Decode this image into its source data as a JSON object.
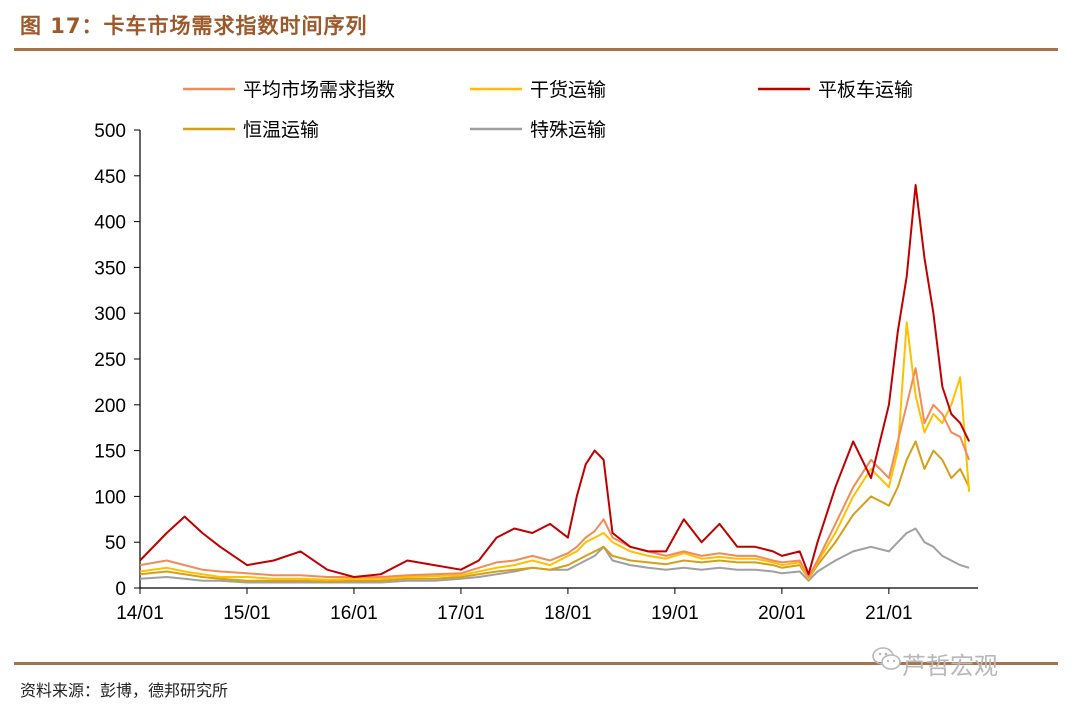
{
  "figure": {
    "title": "图 17：卡车市场需求指数时间序列",
    "source": "资料来源：彭博，德邦研究所",
    "watermark": "芦哲宏观"
  },
  "chart_data": {
    "type": "line",
    "x": [
      "2014-01",
      "2014-04",
      "2014-06",
      "2014-08",
      "2014-10",
      "2015-01",
      "2015-04",
      "2015-07",
      "2015-10",
      "2016-01",
      "2016-04",
      "2016-07",
      "2016-10",
      "2017-01",
      "2017-03",
      "2017-05",
      "2017-07",
      "2017-09",
      "2017-11",
      "2018-01",
      "2018-02",
      "2018-03",
      "2018-04",
      "2018-05",
      "2018-06",
      "2018-08",
      "2018-10",
      "2018-12",
      "2019-02",
      "2019-04",
      "2019-06",
      "2019-08",
      "2019-10",
      "2019-12",
      "2020-01",
      "2020-03",
      "2020-04",
      "2020-05",
      "2020-07",
      "2020-09",
      "2020-11",
      "2021-01",
      "2021-02",
      "2021-03",
      "2021-04",
      "2021-05",
      "2021-06",
      "2021-07",
      "2021-08",
      "2021-09",
      "2021-10"
    ],
    "series": [
      {
        "name": "平均市场需求指数",
        "color": "#f08c5a",
        "values": [
          25,
          30,
          25,
          20,
          18,
          16,
          14,
          14,
          12,
          12,
          12,
          14,
          15,
          16,
          22,
          28,
          30,
          35,
          30,
          38,
          45,
          55,
          62,
          75,
          55,
          45,
          40,
          35,
          40,
          35,
          38,
          35,
          35,
          30,
          28,
          30,
          12,
          30,
          70,
          110,
          140,
          120,
          160,
          200,
          240,
          180,
          200,
          190,
          170,
          165,
          140
        ]
      },
      {
        "name": "干货运输",
        "color": "#ffc000",
        "values": [
          18,
          22,
          18,
          15,
          12,
          12,
          10,
          10,
          9,
          10,
          10,
          12,
          13,
          14,
          18,
          22,
          25,
          30,
          25,
          35,
          40,
          50,
          55,
          60,
          50,
          40,
          35,
          32,
          38,
          32,
          34,
          32,
          32,
          28,
          25,
          28,
          10,
          28,
          60,
          100,
          130,
          110,
          150,
          290,
          210,
          170,
          190,
          180,
          200,
          230,
          105
        ]
      },
      {
        "name": "平板车运输",
        "color": "#c00000",
        "values": [
          30,
          60,
          78,
          60,
          45,
          25,
          30,
          40,
          20,
          12,
          15,
          30,
          25,
          20,
          30,
          55,
          65,
          60,
          70,
          55,
          100,
          135,
          150,
          140,
          60,
          45,
          40,
          40,
          75,
          50,
          70,
          45,
          45,
          40,
          35,
          40,
          15,
          50,
          110,
          160,
          120,
          200,
          280,
          340,
          440,
          360,
          300,
          220,
          190,
          180,
          160
        ]
      },
      {
        "name": "恒温运输",
        "color": "#d4a017",
        "values": [
          15,
          18,
          15,
          12,
          10,
          8,
          8,
          8,
          7,
          8,
          8,
          10,
          10,
          12,
          15,
          18,
          20,
          22,
          20,
          25,
          30,
          35,
          40,
          45,
          35,
          30,
          28,
          26,
          30,
          28,
          30,
          28,
          28,
          25,
          22,
          25,
          10,
          25,
          50,
          80,
          100,
          90,
          110,
          140,
          160,
          130,
          150,
          140,
          120,
          130,
          110
        ]
      },
      {
        "name": "特殊运输",
        "color": "#a0a0a0",
        "values": [
          10,
          12,
          10,
          8,
          8,
          6,
          6,
          6,
          6,
          6,
          6,
          8,
          8,
          10,
          12,
          15,
          18,
          22,
          20,
          20,
          25,
          30,
          35,
          45,
          30,
          25,
          22,
          20,
          22,
          20,
          22,
          20,
          20,
          18,
          16,
          18,
          8,
          18,
          30,
          40,
          45,
          40,
          50,
          60,
          65,
          50,
          45,
          35,
          30,
          25,
          22
        ]
      }
    ],
    "xticks": [
      "14/01",
      "15/01",
      "16/01",
      "17/01",
      "18/01",
      "19/01",
      "20/01",
      "21/01"
    ],
    "yticks": [
      0,
      50,
      100,
      150,
      200,
      250,
      300,
      350,
      400,
      450,
      500
    ],
    "xlim": [
      "2014-01",
      "2021-11"
    ],
    "ylim": [
      0,
      500
    ],
    "legend": "top",
    "grid": false
  }
}
